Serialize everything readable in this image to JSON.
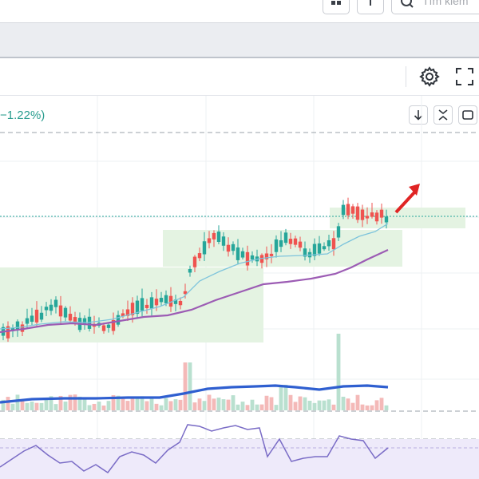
{
  "toolbar": {
    "search_placeholder": "Tìm kiếm",
    "icons": [
      "layout-grid-icon",
      "plus-icon",
      "search-icon",
      "gear-icon",
      "fullscreen-icon"
    ]
  },
  "legend": {
    "change_text": "−1.22%)"
  },
  "pane_buttons": [
    "arrow-down-icon",
    "collapse-icon",
    "maximize-icon"
  ],
  "colors": {
    "up": "#26a69a",
    "down": "#ef5350",
    "ma_fast": "#7ec4dc",
    "ma_slow": "#9c5cb4",
    "volume_ma": "#2f5fd0",
    "rsi": "#7a6cc6",
    "box": "#e3f3e1",
    "arrow": "#e02424"
  }
}
